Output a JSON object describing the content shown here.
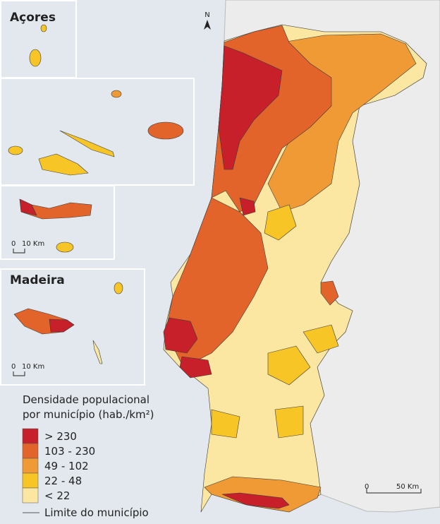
{
  "insets": [
    {
      "title": "Açores"
    },
    {
      "title": "Madeira"
    }
  ],
  "north": "N",
  "scale_bars": [
    {
      "zero": "0",
      "length": "10 Km"
    },
    {
      "zero": "0",
      "length": "10 Km"
    },
    {
      "zero": "0",
      "length": "50 Km"
    }
  ],
  "legend": {
    "title": [
      "Densidade populacional",
      "por município (hab./km²)"
    ],
    "items": [
      {
        "label": "> 230",
        "color": "#c8202a"
      },
      {
        "label": "103 - 230",
        "color": "#e3642a"
      },
      {
        "label": "49 - 102",
        "color": "#f09a35"
      },
      {
        "label": "22 - 48",
        "color": "#f8c526"
      },
      {
        "label": "< 22",
        "color": "#fbe7a1"
      }
    ],
    "boundary": "Limite do município"
  }
}
